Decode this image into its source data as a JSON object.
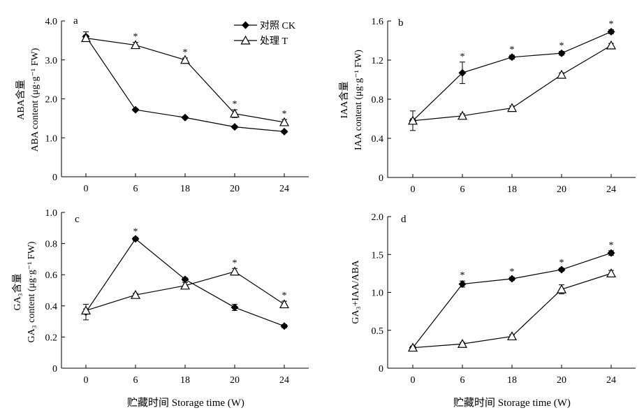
{
  "legend": [
    {
      "label": "对照 CK",
      "marker": "diamond-filled"
    },
    {
      "label": "处理 T",
      "marker": "triangle-open"
    }
  ],
  "xlabel": "贮藏时间 Storage time (W)",
  "chart_data": [
    {
      "type": "line",
      "panel": "a",
      "categories": [
        "0",
        "6",
        "18",
        "20",
        "24"
      ],
      "ylabel_cn": "ABA含量",
      "ylabel_en": "ABA content (μg·g⁻¹ FW)",
      "ylim": [
        0,
        4.0
      ],
      "yticks": [
        "0",
        "1.0",
        "2.0",
        "3.0",
        "4.0"
      ],
      "series": [
        {
          "name": "对照 CK",
          "values": [
            3.6,
            1.72,
            1.52,
            1.28,
            1.16
          ],
          "err": [
            0.12,
            0.03,
            0.03,
            0.03,
            0.03
          ]
        },
        {
          "name": "处理 T",
          "values": [
            3.56,
            3.38,
            3.0,
            1.62,
            1.4
          ],
          "err": [
            0.07,
            0.07,
            0.05,
            0.1,
            0.07
          ]
        }
      ],
      "significant": [
        false,
        true,
        true,
        true,
        true
      ]
    },
    {
      "type": "line",
      "panel": "b",
      "categories": [
        "0",
        "6",
        "18",
        "20",
        "24"
      ],
      "ylabel_cn": "IAA含量",
      "ylabel_en": "IAA content (μg·g⁻¹ FW)",
      "ylim": [
        0,
        1.6
      ],
      "yticks": [
        "0",
        "0.4",
        "0.8",
        "1.2",
        "1.6"
      ],
      "series": [
        {
          "name": "对照 CK",
          "values": [
            0.58,
            1.07,
            1.23,
            1.27,
            1.49
          ],
          "err": [
            0.1,
            0.11,
            0.02,
            0.02,
            0.02
          ]
        },
        {
          "name": "处理 T",
          "values": [
            0.58,
            0.63,
            0.71,
            1.05,
            1.35
          ],
          "err": [
            0.02,
            0.02,
            0.02,
            0.02,
            0.02
          ]
        }
      ],
      "significant": [
        false,
        true,
        true,
        true,
        true
      ]
    },
    {
      "type": "line",
      "panel": "c",
      "categories": [
        "0",
        "6",
        "18",
        "20",
        "24"
      ],
      "ylabel_cn": "GA₃含量",
      "ylabel_en": "GA₃ content (μg·g⁻¹ FW)",
      "ylim": [
        0,
        1.0
      ],
      "yticks": [
        "0",
        "0.2",
        "0.4",
        "0.6",
        "0.8",
        "1.0"
      ],
      "series": [
        {
          "name": "对照 CK",
          "values": [
            0.36,
            0.83,
            0.57,
            0.39,
            0.27
          ],
          "err": [
            0.05,
            0.01,
            0.01,
            0.02,
            0.01
          ]
        },
        {
          "name": "处理 T",
          "values": [
            0.37,
            0.47,
            0.53,
            0.62,
            0.41
          ],
          "err": [
            0.01,
            0.01,
            0.02,
            0.02,
            0.02
          ]
        }
      ],
      "significant": [
        false,
        true,
        false,
        true,
        true
      ]
    },
    {
      "type": "line",
      "panel": "d",
      "categories": [
        "0",
        "6",
        "18",
        "20",
        "24"
      ],
      "ylabel_en": "GA₃+IAA/ABA",
      "ylim": [
        0,
        2.0
      ],
      "yticks": [
        "0",
        "0.5",
        "1.0",
        "1.5",
        "2.0"
      ],
      "series": [
        {
          "name": "对照 CK",
          "values": [
            0.27,
            1.11,
            1.18,
            1.3,
            1.52
          ],
          "err": [
            0.02,
            0.04,
            0.02,
            0.02,
            0.03
          ]
        },
        {
          "name": "处理 T",
          "values": [
            0.27,
            0.32,
            0.42,
            1.04,
            1.25
          ],
          "err": [
            0.02,
            0.02,
            0.02,
            0.06,
            0.04
          ]
        }
      ],
      "significant": [
        false,
        true,
        true,
        true,
        true
      ]
    }
  ]
}
